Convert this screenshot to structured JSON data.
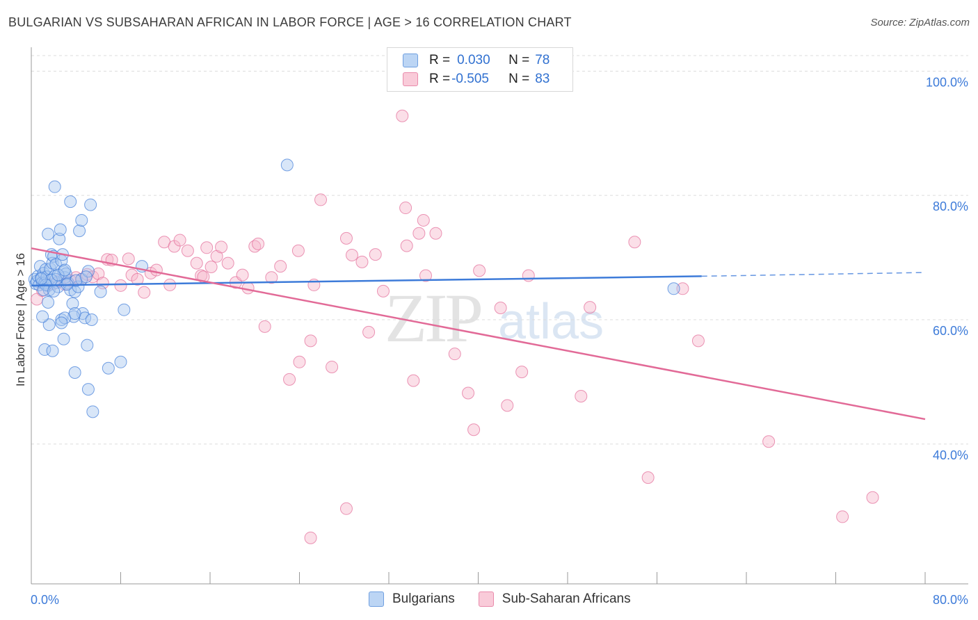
{
  "title": "BULGARIAN VS SUBSAHARAN AFRICAN IN LABOR FORCE | AGE > 16 CORRELATION CHART",
  "source": "Source: ZipAtlas.com",
  "watermark": {
    "zip": "ZIP",
    "atlas": "atlas"
  },
  "legend": {
    "rows": [
      {
        "r_label": "R =",
        "r_value": "0.030",
        "n_label": "N =",
        "n_value": "78",
        "color": "#a9c8f0"
      },
      {
        "r_label": "R =",
        "r_value": "-0.505",
        "n_label": "N =",
        "n_value": "83",
        "color": "#f6b8cb"
      }
    ]
  },
  "bottom_legend": {
    "a": "Bulgarians",
    "b": "Sub-Saharan Africans"
  },
  "chart_data": {
    "type": "scatter",
    "title": "BULGARIAN VS SUBSAHARAN AFRICAN IN LABOR FORCE | AGE > 16 CORRELATION CHART",
    "xlabel": "",
    "ylabel": "In Labor Force | Age > 16",
    "xlim": [
      0,
      80
    ],
    "ylim": [
      17.5,
      102.5
    ],
    "x_tick_labels": [
      "0.0%",
      "80.0%"
    ],
    "y_ticks": [
      {
        "value": 40,
        "label": "40.0%"
      },
      {
        "value": 60,
        "label": "60.0%"
      },
      {
        "value": 80,
        "label": "80.0%"
      },
      {
        "value": 100,
        "label": "100.0%"
      }
    ],
    "grid": true,
    "colors": {
      "bulgarians": "#3d7bd9",
      "bulgarians_fill": "#a9c8f0",
      "subsaharan": "#e26a97",
      "subsaharan_fill": "#f6b8cb"
    },
    "series": [
      {
        "name": "Bulgarians",
        "trend": {
          "x": [
            0,
            60
          ],
          "y": [
            65.5,
            67.0
          ],
          "dashed_to": [
            80,
            67.6
          ]
        },
        "points": [
          [
            0.3,
            66.5
          ],
          [
            0.4,
            65.8
          ],
          [
            0.5,
            66.2
          ],
          [
            0.6,
            67.0
          ],
          [
            0.7,
            65.6
          ],
          [
            0.8,
            68.6
          ],
          [
            0.9,
            66.8
          ],
          [
            1.0,
            66.0
          ],
          [
            1.1,
            67.5
          ],
          [
            1.2,
            65.9
          ],
          [
            1.3,
            68.1
          ],
          [
            1.4,
            66.9
          ],
          [
            1.5,
            65.5
          ],
          [
            1.6,
            64.8
          ],
          [
            1.7,
            68.2
          ],
          [
            1.8,
            70.5
          ],
          [
            1.9,
            69.1
          ],
          [
            2.0,
            70.2
          ],
          [
            2.1,
            67.0
          ],
          [
            2.2,
            68.9
          ],
          [
            2.3,
            66.0
          ],
          [
            2.4,
            65.3
          ],
          [
            2.5,
            73.0
          ],
          [
            2.6,
            74.5
          ],
          [
            2.7,
            69.5
          ],
          [
            2.8,
            70.5
          ],
          [
            2.9,
            67.8
          ],
          [
            3.0,
            66.8
          ],
          [
            3.1,
            67.4
          ],
          [
            3.3,
            65.9
          ],
          [
            3.5,
            64.8
          ],
          [
            3.7,
            62.6
          ],
          [
            3.9,
            64.5
          ],
          [
            4.2,
            65.3
          ],
          [
            4.5,
            66.5
          ],
          [
            4.6,
            61.0
          ],
          [
            4.8,
            60.3
          ],
          [
            1.5,
            73.8
          ],
          [
            2.1,
            81.4
          ],
          [
            3.5,
            79.0
          ],
          [
            4.3,
            74.3
          ],
          [
            4.5,
            76.0
          ],
          [
            5.3,
            78.5
          ],
          [
            1.2,
            55.2
          ],
          [
            1.9,
            55.0
          ],
          [
            2.9,
            56.9
          ],
          [
            5.0,
            55.9
          ],
          [
            5.4,
            60.0
          ],
          [
            3.8,
            60.5
          ],
          [
            2.7,
            60.0
          ],
          [
            1.6,
            59.2
          ],
          [
            1.0,
            60.5
          ],
          [
            3.0,
            60.3
          ],
          [
            1.5,
            62.8
          ],
          [
            2.7,
            59.5
          ],
          [
            3.9,
            61.0
          ],
          [
            6.2,
            64.5
          ],
          [
            8.3,
            61.6
          ],
          [
            9.9,
            68.6
          ],
          [
            3.9,
            51.5
          ],
          [
            5.1,
            48.8
          ],
          [
            5.5,
            45.2
          ],
          [
            6.9,
            52.2
          ],
          [
            8.0,
            53.2
          ],
          [
            5.1,
            67.8
          ],
          [
            2.2,
            66.5
          ],
          [
            1.8,
            66.4
          ],
          [
            1.3,
            65.6
          ],
          [
            0.9,
            66.6
          ],
          [
            2.4,
            67.2
          ],
          [
            3.0,
            68.0
          ],
          [
            4.0,
            66.3
          ],
          [
            4.9,
            66.9
          ],
          [
            1.1,
            64.8
          ],
          [
            2.0,
            64.6
          ],
          [
            3.2,
            65.7
          ],
          [
            22.9,
            84.9
          ],
          [
            57.5,
            65.0
          ]
        ]
      },
      {
        "name": "Sub-Saharan Africans",
        "trend": {
          "x": [
            0,
            80
          ],
          "y": [
            71.5,
            44.0
          ]
        },
        "points": [
          [
            0.5,
            63.3
          ],
          [
            1.0,
            64.7
          ],
          [
            1.5,
            65.6
          ],
          [
            2.0,
            65.8
          ],
          [
            2.5,
            66.3
          ],
          [
            3.0,
            65.7
          ],
          [
            3.5,
            66.3
          ],
          [
            4.0,
            66.8
          ],
          [
            4.5,
            66.5
          ],
          [
            5.0,
            67.3
          ],
          [
            5.5,
            66.9
          ],
          [
            6.0,
            67.4
          ],
          [
            6.4,
            65.9
          ],
          [
            6.8,
            69.7
          ],
          [
            7.2,
            69.6
          ],
          [
            8.0,
            65.5
          ],
          [
            8.7,
            69.8
          ],
          [
            9.0,
            67.2
          ],
          [
            9.5,
            66.5
          ],
          [
            10.1,
            64.4
          ],
          [
            10.7,
            67.5
          ],
          [
            11.2,
            68.0
          ],
          [
            11.9,
            72.5
          ],
          [
            12.4,
            65.6
          ],
          [
            12.8,
            71.8
          ],
          [
            13.3,
            72.8
          ],
          [
            14.0,
            71.1
          ],
          [
            14.8,
            69.1
          ],
          [
            15.2,
            67.1
          ],
          [
            15.4,
            66.9
          ],
          [
            15.7,
            71.6
          ],
          [
            16.1,
            68.5
          ],
          [
            16.6,
            70.2
          ],
          [
            17.0,
            71.7
          ],
          [
            17.6,
            69.1
          ],
          [
            18.3,
            66.0
          ],
          [
            18.9,
            67.2
          ],
          [
            19.4,
            65.1
          ],
          [
            20.0,
            71.8
          ],
          [
            20.3,
            72.2
          ],
          [
            21.5,
            66.8
          ],
          [
            22.3,
            68.6
          ],
          [
            23.9,
            71.1
          ],
          [
            25.3,
            65.6
          ],
          [
            25.9,
            79.3
          ],
          [
            28.2,
            73.1
          ],
          [
            28.7,
            70.4
          ],
          [
            29.6,
            69.3
          ],
          [
            30.8,
            70.5
          ],
          [
            31.5,
            64.6
          ],
          [
            33.6,
            71.9
          ],
          [
            34.7,
            73.9
          ],
          [
            35.1,
            76.0
          ],
          [
            35.3,
            67.1
          ],
          [
            40.1,
            67.9
          ],
          [
            42.0,
            61.9
          ],
          [
            44.5,
            67.1
          ],
          [
            50.0,
            62.0
          ],
          [
            54.0,
            72.5
          ],
          [
            58.3,
            65.0
          ],
          [
            20.9,
            58.9
          ],
          [
            23.1,
            50.4
          ],
          [
            24.0,
            53.2
          ],
          [
            25.0,
            56.6
          ],
          [
            26.9,
            52.4
          ],
          [
            30.2,
            58.0
          ],
          [
            34.2,
            50.2
          ],
          [
            37.9,
            54.5
          ],
          [
            39.1,
            48.2
          ],
          [
            42.6,
            46.2
          ],
          [
            43.9,
            51.6
          ],
          [
            49.2,
            47.7
          ],
          [
            59.7,
            56.6
          ],
          [
            39.6,
            42.3
          ],
          [
            66.0,
            40.4
          ],
          [
            55.2,
            34.6
          ],
          [
            28.2,
            29.6
          ],
          [
            25.0,
            24.9
          ],
          [
            75.3,
            31.4
          ],
          [
            72.6,
            28.3
          ],
          [
            33.2,
            92.8
          ],
          [
            33.5,
            78.0
          ],
          [
            36.2,
            73.9
          ]
        ]
      }
    ]
  }
}
